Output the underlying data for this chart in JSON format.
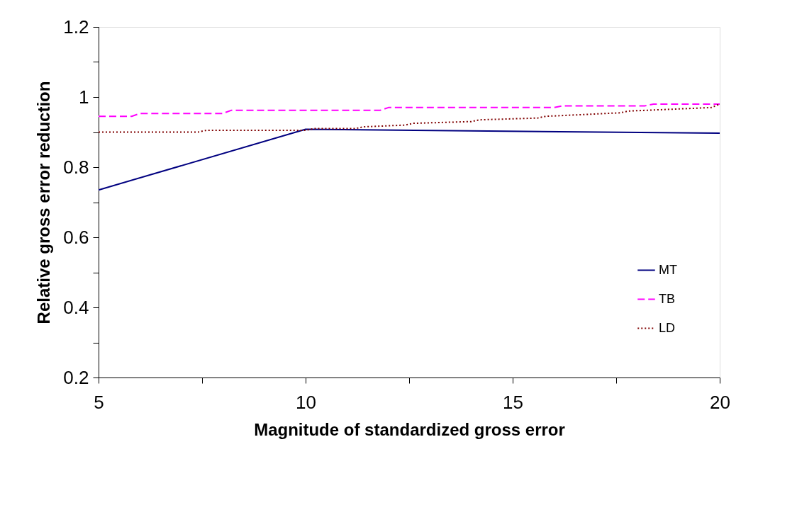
{
  "chart_data": {
    "type": "line",
    "xlabel": "Magnitude of standardized gross error",
    "ylabel": "Relative gross error reduction",
    "xlim": [
      5,
      20
    ],
    "xticks": [
      5,
      {
        "value": 7.5,
        "label": null
      },
      10,
      {
        "value": 12.5,
        "label": null
      },
      15,
      {
        "value": 17.5,
        "label": null
      },
      20
    ],
    "ylim": [
      0.2,
      1.2
    ],
    "yticks": [
      0.2,
      {
        "value": 0.3,
        "label": null
      },
      0.4,
      {
        "value": 0.5,
        "label": null
      },
      0.6,
      {
        "value": 0.7,
        "label": null
      },
      0.8,
      {
        "value": 0.9,
        "label": null
      },
      1,
      {
        "value": 1.1,
        "label": null
      },
      1.2
    ],
    "grid": false,
    "legend": "bottom right",
    "marker": "none",
    "series": [
      {
        "name": "MT",
        "color": "#000080",
        "line_style": "solid",
        "x": [
          5,
          10,
          20
        ],
        "values": [
          0.735,
          0.908,
          0.897
        ]
      },
      {
        "name": "TB",
        "color": "#ff00ff",
        "line_style": "dashed",
        "x": [
          5,
          5.8,
          6,
          8,
          8.2,
          11.8,
          12,
          16,
          16.2,
          18.2,
          18.4,
          20
        ],
        "values": [
          0.945,
          0.945,
          0.953,
          0.953,
          0.962,
          0.962,
          0.97,
          0.97,
          0.975,
          0.975,
          0.98,
          0.98
        ]
      },
      {
        "name": "LD",
        "color": "#800000",
        "line_style": "dotted",
        "x": [
          5,
          7.4,
          7.6,
          10,
          10.2,
          11.2,
          11.4,
          12.4,
          12.6,
          14,
          14.2,
          15.6,
          15.8,
          17.6,
          17.8,
          19.8,
          20
        ],
        "values": [
          0.9,
          0.9,
          0.905,
          0.905,
          0.91,
          0.91,
          0.915,
          0.92,
          0.925,
          0.93,
          0.935,
          0.94,
          0.945,
          0.955,
          0.96,
          0.97,
          0.98
        ]
      }
    ]
  }
}
